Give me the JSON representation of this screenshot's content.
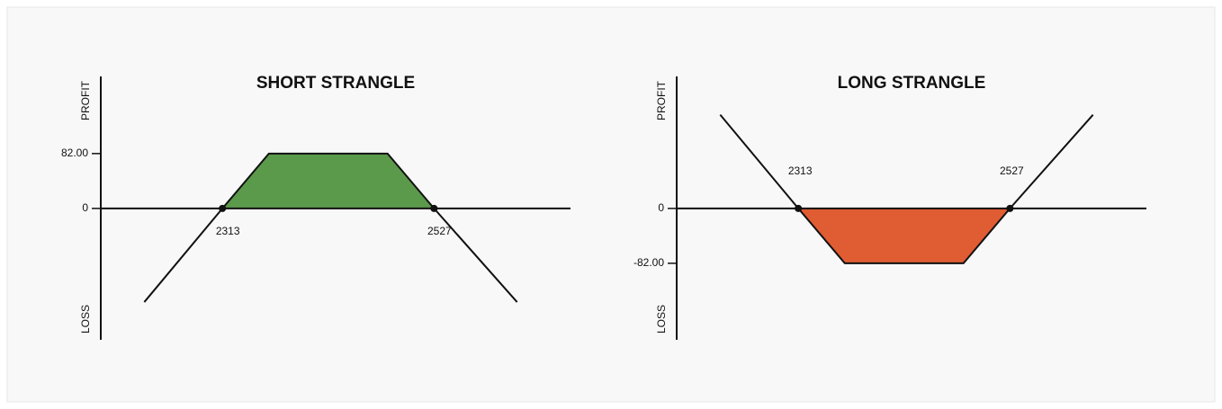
{
  "chart_data": [
    {
      "type": "line",
      "title": "SHORT STRANGLE",
      "y_label_top": "PROFIT",
      "y_label_bottom": "LOSS",
      "x": [
        2234,
        2313,
        2360,
        2480,
        2527,
        2611
      ],
      "series": [
        {
          "color": "#5b9a4b",
          "values": [
            -140,
            0,
            82,
            82,
            0,
            -140
          ]
        }
      ],
      "fill": "profit",
      "breakevens": [
        2313,
        2527
      ],
      "breakeven_label_position": "below",
      "xlim": [
        2190,
        2665
      ],
      "ylim": [
        -195,
        200
      ],
      "yticks": [
        {
          "value": 82,
          "label": "82.00"
        },
        0
      ]
    },
    {
      "type": "line",
      "title": "LONG STRANGLE",
      "y_label_top": "PROFIT",
      "y_label_bottom": "LOSS",
      "x": [
        2234,
        2313,
        2360,
        2480,
        2527,
        2611
      ],
      "series": [
        {
          "color": "#e05c33",
          "values": [
            140,
            0,
            -82,
            -82,
            0,
            140
          ]
        }
      ],
      "fill": "loss",
      "breakevens": [
        2313,
        2527
      ],
      "breakeven_label_position": "above",
      "xlim": [
        2190,
        2665
      ],
      "ylim": [
        -195,
        200
      ],
      "yticks": [
        0,
        {
          "value": -82,
          "label": "-82.00"
        }
      ]
    }
  ]
}
